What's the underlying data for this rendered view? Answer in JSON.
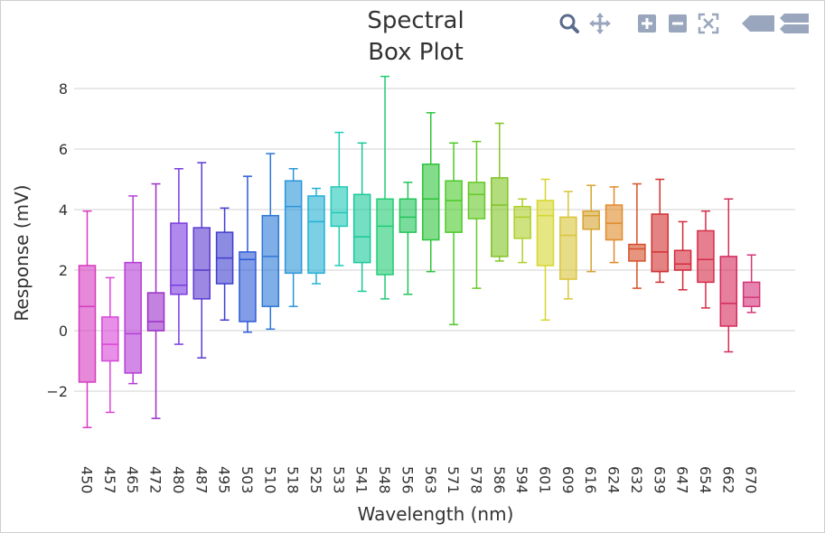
{
  "chart_data": {
    "type": "box",
    "title_lines": [
      "Spectral",
      "Box Plot"
    ],
    "xlabel": "Wavelength (nm)",
    "ylabel": "Response (mV)",
    "ylim": [
      -4,
      8.5
    ],
    "yticks": [
      -2,
      0,
      2,
      4,
      6,
      8
    ],
    "ytick_labels": [
      "−2",
      "0",
      "2",
      "4",
      "6",
      "8"
    ],
    "grid": true,
    "legend": false,
    "categories": [
      "450",
      "457",
      "465",
      "472",
      "480",
      "487",
      "495",
      "503",
      "510",
      "518",
      "525",
      "533",
      "541",
      "548",
      "556",
      "563",
      "571",
      "578",
      "586",
      "594",
      "601",
      "609",
      "616",
      "624",
      "632",
      "639",
      "647",
      "654",
      "662",
      "670"
    ],
    "boxes": [
      {
        "min": -3.2,
        "q1": -1.7,
        "median": 0.8,
        "q3": 2.15,
        "max": 3.95,
        "color": "#d63bc0"
      },
      {
        "min": -2.7,
        "q1": -1.0,
        "median": -0.45,
        "q3": 0.45,
        "max": 1.75,
        "color": "#d845d8"
      },
      {
        "min": -1.75,
        "q1": -1.4,
        "median": -0.1,
        "q3": 2.25,
        "max": 4.45,
        "color": "#b43cd6"
      },
      {
        "min": -2.9,
        "q1": 0.0,
        "median": 0.3,
        "q3": 1.25,
        "max": 4.85,
        "color": "#9a2fc8"
      },
      {
        "min": -0.45,
        "q1": 1.2,
        "median": 1.5,
        "q3": 3.55,
        "max": 5.35,
        "color": "#7a3ae0"
      },
      {
        "min": -0.9,
        "q1": 1.05,
        "median": 2.0,
        "q3": 3.4,
        "max": 5.55,
        "color": "#5b3ad0"
      },
      {
        "min": 0.35,
        "q1": 1.55,
        "median": 2.4,
        "q3": 3.25,
        "max": 4.05,
        "color": "#3f3fd0"
      },
      {
        "min": -0.05,
        "q1": 0.3,
        "median": 2.35,
        "q3": 2.6,
        "max": 5.1,
        "color": "#2e5ad8"
      },
      {
        "min": 0.05,
        "q1": 0.8,
        "median": 2.45,
        "q3": 3.8,
        "max": 5.85,
        "color": "#2b78d6"
      },
      {
        "min": 0.8,
        "q1": 1.9,
        "median": 4.1,
        "q3": 4.95,
        "max": 5.35,
        "color": "#2c95d8"
      },
      {
        "min": 1.55,
        "q1": 1.9,
        "median": 3.6,
        "q3": 4.45,
        "max": 4.7,
        "color": "#23b0d4"
      },
      {
        "min": 2.15,
        "q1": 3.45,
        "median": 3.9,
        "q3": 4.75,
        "max": 6.55,
        "color": "#1fc9b8"
      },
      {
        "min": 1.3,
        "q1": 2.25,
        "median": 3.1,
        "q3": 4.5,
        "max": 6.2,
        "color": "#19c99a"
      },
      {
        "min": 1.05,
        "q1": 1.85,
        "median": 3.45,
        "q3": 4.35,
        "max": 8.4,
        "color": "#20cc74"
      },
      {
        "min": 1.2,
        "q1": 3.25,
        "median": 3.75,
        "q3": 4.35,
        "max": 4.9,
        "color": "#22c45a"
      },
      {
        "min": 1.95,
        "q1": 3.0,
        "median": 4.35,
        "q3": 5.5,
        "max": 7.2,
        "color": "#2ec43c"
      },
      {
        "min": 0.2,
        "q1": 3.25,
        "median": 4.3,
        "q3": 4.95,
        "max": 6.2,
        "color": "#4cc92a"
      },
      {
        "min": 1.4,
        "q1": 3.7,
        "median": 4.5,
        "q3": 4.9,
        "max": 6.25,
        "color": "#66c928"
      },
      {
        "min": 2.3,
        "q1": 2.45,
        "median": 4.15,
        "q3": 5.05,
        "max": 6.85,
        "color": "#80c424"
      },
      {
        "min": 2.25,
        "q1": 3.05,
        "median": 3.75,
        "q3": 4.1,
        "max": 4.35,
        "color": "#aecf2c"
      },
      {
        "min": 0.35,
        "q1": 2.15,
        "median": 3.8,
        "q3": 4.3,
        "max": 5.0,
        "color": "#d6d62e"
      },
      {
        "min": 1.05,
        "q1": 1.7,
        "median": 3.15,
        "q3": 3.75,
        "max": 4.6,
        "color": "#d9c43a"
      },
      {
        "min": 1.95,
        "q1": 3.35,
        "median": 3.8,
        "q3": 3.95,
        "max": 4.8,
        "color": "#d6a32e"
      },
      {
        "min": 2.25,
        "q1": 3.0,
        "median": 3.55,
        "q3": 4.15,
        "max": 4.75,
        "color": "#e08a2a"
      },
      {
        "min": 1.4,
        "q1": 2.3,
        "median": 2.7,
        "q3": 2.85,
        "max": 4.85,
        "color": "#d6502a"
      },
      {
        "min": 1.6,
        "q1": 1.95,
        "median": 2.6,
        "q3": 3.85,
        "max": 5.0,
        "color": "#d23030"
      },
      {
        "min": 1.35,
        "q1": 2.0,
        "median": 2.2,
        "q3": 2.65,
        "max": 3.6,
        "color": "#d42a3a"
      },
      {
        "min": 0.75,
        "q1": 1.6,
        "median": 2.35,
        "q3": 3.3,
        "max": 3.95,
        "color": "#d62c48"
      },
      {
        "min": -0.7,
        "q1": 0.15,
        "median": 0.9,
        "q3": 2.45,
        "max": 4.35,
        "color": "#d42a5a"
      },
      {
        "min": 0.6,
        "q1": 0.8,
        "median": 1.1,
        "q3": 1.6,
        "max": 2.5,
        "color": "#d4347a"
      }
    ]
  },
  "modebar": {
    "zoom_icon": "zoom-magnifier-icon",
    "pan_icon": "pan-arrows-icon",
    "zoom_in_icon": "zoom-in-plus-icon",
    "zoom_out_icon": "zoom-out-minus-icon",
    "autoscale_icon": "autoscale-icon",
    "hover_closest_icon": "hover-closest-icon",
    "hover_compare_icon": "hover-compare-icon",
    "icon_color": "#9aa6bd",
    "active_color": "#5a6b8c"
  }
}
